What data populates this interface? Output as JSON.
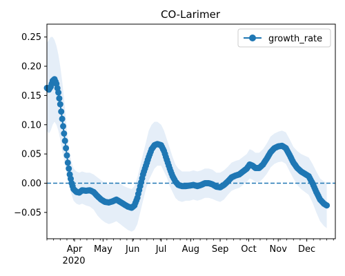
{
  "chart_data": {
    "type": "line",
    "title": "CO-Larimer",
    "xlabel": "",
    "ylabel": "",
    "x_range": [
      "2020-03-03",
      "2020-12-31"
    ],
    "ylim": [
      -0.095,
      0.272
    ],
    "yticks": [
      -0.05,
      0.0,
      0.05,
      0.1,
      0.15,
      0.2,
      0.25
    ],
    "ytick_labels": [
      "−0.05",
      "0.00",
      "0.05",
      "0.10",
      "0.15",
      "0.20",
      "0.25"
    ],
    "xticks": [
      "2020-04-01",
      "2020-05-01",
      "2020-06-01",
      "2020-07-01",
      "2020-08-01",
      "2020-09-01",
      "2020-10-01",
      "2020-11-01",
      "2020-12-01"
    ],
    "xtick_labels": [
      "Apr",
      "May",
      "Jun",
      "Jul",
      "Aug",
      "Sep",
      "Oct",
      "Nov",
      "Dec"
    ],
    "year_label": "2020",
    "legend_position": "top-right",
    "reference_line": 0.0,
    "series": [
      {
        "name": "growth_rate",
        "color": "#1f77b4",
        "marker": "circle",
        "band_color": "#e5eef8",
        "points": [
          [
            "2020-03-03",
            0.163,
            0.09,
            0.24
          ],
          [
            "2020-03-05",
            0.16,
            0.085,
            0.245
          ],
          [
            "2020-03-07",
            0.165,
            0.09,
            0.25
          ],
          [
            "2020-03-09",
            0.175,
            0.1,
            0.25
          ],
          [
            "2020-03-11",
            0.178,
            0.105,
            0.245
          ],
          [
            "2020-03-13",
            0.17,
            0.1,
            0.235
          ],
          [
            "2020-03-15",
            0.155,
            0.09,
            0.22
          ],
          [
            "2020-03-17",
            0.135,
            0.075,
            0.2
          ],
          [
            "2020-03-19",
            0.11,
            0.055,
            0.175
          ],
          [
            "2020-03-21",
            0.085,
            0.04,
            0.145
          ],
          [
            "2020-03-23",
            0.06,
            0.025,
            0.11
          ],
          [
            "2020-03-25",
            0.035,
            0.005,
            0.075
          ],
          [
            "2020-03-27",
            0.015,
            -0.01,
            0.05
          ],
          [
            "2020-03-29",
            0.0,
            -0.02,
            0.035
          ],
          [
            "2020-03-31",
            -0.01,
            -0.03,
            0.025
          ],
          [
            "2020-04-03",
            -0.015,
            -0.035,
            0.02
          ],
          [
            "2020-04-06",
            -0.016,
            -0.037,
            0.018
          ],
          [
            "2020-04-09",
            -0.012,
            -0.035,
            0.02
          ],
          [
            "2020-04-13",
            -0.013,
            -0.038,
            0.018
          ],
          [
            "2020-04-17",
            -0.012,
            -0.04,
            0.018
          ],
          [
            "2020-04-21",
            -0.015,
            -0.045,
            0.015
          ],
          [
            "2020-04-25",
            -0.022,
            -0.055,
            0.01
          ],
          [
            "2020-04-29",
            -0.028,
            -0.062,
            0.005
          ],
          [
            "2020-05-03",
            -0.032,
            -0.067,
            0.0
          ],
          [
            "2020-05-07",
            -0.033,
            -0.07,
            -0.002
          ],
          [
            "2020-05-11",
            -0.031,
            -0.068,
            0.0
          ],
          [
            "2020-05-15",
            -0.028,
            -0.065,
            0.002
          ],
          [
            "2020-05-19",
            -0.032,
            -0.07,
            -0.001
          ],
          [
            "2020-05-23",
            -0.036,
            -0.075,
            -0.005
          ],
          [
            "2020-05-27",
            -0.04,
            -0.08,
            -0.008
          ],
          [
            "2020-05-31",
            -0.042,
            -0.083,
            -0.01
          ],
          [
            "2020-06-03",
            -0.038,
            -0.08,
            -0.005
          ],
          [
            "2020-06-06",
            -0.025,
            -0.07,
            0.01
          ],
          [
            "2020-06-09",
            -0.005,
            -0.05,
            0.03
          ],
          [
            "2020-06-12",
            0.015,
            -0.03,
            0.05
          ],
          [
            "2020-06-15",
            0.03,
            -0.01,
            0.07
          ],
          [
            "2020-06-18",
            0.045,
            0.005,
            0.09
          ],
          [
            "2020-06-21",
            0.058,
            0.015,
            0.1
          ],
          [
            "2020-06-24",
            0.065,
            0.025,
            0.105
          ],
          [
            "2020-06-27",
            0.067,
            0.03,
            0.105
          ],
          [
            "2020-07-01",
            0.065,
            0.03,
            0.1
          ],
          [
            "2020-07-04",
            0.055,
            0.02,
            0.09
          ],
          [
            "2020-07-07",
            0.04,
            0.01,
            0.075
          ],
          [
            "2020-07-10",
            0.025,
            -0.005,
            0.06
          ],
          [
            "2020-07-13",
            0.012,
            -0.015,
            0.045
          ],
          [
            "2020-07-16",
            0.003,
            -0.025,
            0.032
          ],
          [
            "2020-07-19",
            -0.003,
            -0.03,
            0.025
          ],
          [
            "2020-07-23",
            -0.005,
            -0.032,
            0.02
          ],
          [
            "2020-07-27",
            -0.005,
            -0.03,
            0.02
          ],
          [
            "2020-07-31",
            -0.004,
            -0.03,
            0.02
          ],
          [
            "2020-08-04",
            -0.003,
            -0.028,
            0.022
          ],
          [
            "2020-08-08",
            -0.005,
            -0.03,
            0.02
          ],
          [
            "2020-08-12",
            -0.003,
            -0.028,
            0.022
          ],
          [
            "2020-08-16",
            0.0,
            -0.025,
            0.025
          ],
          [
            "2020-08-20",
            0.0,
            -0.025,
            0.025
          ],
          [
            "2020-08-24",
            -0.002,
            -0.027,
            0.023
          ],
          [
            "2020-08-28",
            -0.006,
            -0.03,
            0.018
          ],
          [
            "2020-09-01",
            -0.007,
            -0.032,
            0.018
          ],
          [
            "2020-09-05",
            -0.003,
            -0.028,
            0.022
          ],
          [
            "2020-09-09",
            0.003,
            -0.02,
            0.028
          ],
          [
            "2020-09-13",
            0.01,
            -0.013,
            0.035
          ],
          [
            "2020-09-17",
            0.013,
            -0.01,
            0.038
          ],
          [
            "2020-09-21",
            0.015,
            -0.008,
            0.04
          ],
          [
            "2020-09-25",
            0.02,
            -0.003,
            0.045
          ],
          [
            "2020-09-29",
            0.025,
            0.002,
            0.05
          ],
          [
            "2020-10-02",
            0.032,
            0.008,
            0.058
          ],
          [
            "2020-10-05",
            0.03,
            0.006,
            0.056
          ],
          [
            "2020-10-08",
            0.026,
            0.002,
            0.052
          ],
          [
            "2020-10-12",
            0.026,
            0.002,
            0.052
          ],
          [
            "2020-10-16",
            0.032,
            0.008,
            0.058
          ],
          [
            "2020-10-20",
            0.042,
            0.016,
            0.068
          ],
          [
            "2020-10-24",
            0.053,
            0.027,
            0.08
          ],
          [
            "2020-10-28",
            0.06,
            0.033,
            0.085
          ],
          [
            "2020-11-01",
            0.063,
            0.036,
            0.088
          ],
          [
            "2020-11-05",
            0.064,
            0.037,
            0.09
          ],
          [
            "2020-11-09",
            0.06,
            0.033,
            0.087
          ],
          [
            "2020-11-13",
            0.048,
            0.02,
            0.075
          ],
          [
            "2020-11-17",
            0.035,
            0.008,
            0.062
          ],
          [
            "2020-11-21",
            0.026,
            -0.003,
            0.055
          ],
          [
            "2020-11-25",
            0.02,
            -0.01,
            0.05
          ],
          [
            "2020-11-29",
            0.016,
            -0.015,
            0.047
          ],
          [
            "2020-12-03",
            0.012,
            -0.02,
            0.044
          ],
          [
            "2020-12-07",
            0.0,
            -0.033,
            0.033
          ],
          [
            "2020-12-11",
            -0.015,
            -0.05,
            0.02
          ],
          [
            "2020-12-15",
            -0.028,
            -0.065,
            0.008
          ],
          [
            "2020-12-19",
            -0.035,
            -0.073,
            0.003
          ],
          [
            "2020-12-22",
            -0.038,
            -0.077,
            0.001
          ]
        ]
      }
    ]
  }
}
